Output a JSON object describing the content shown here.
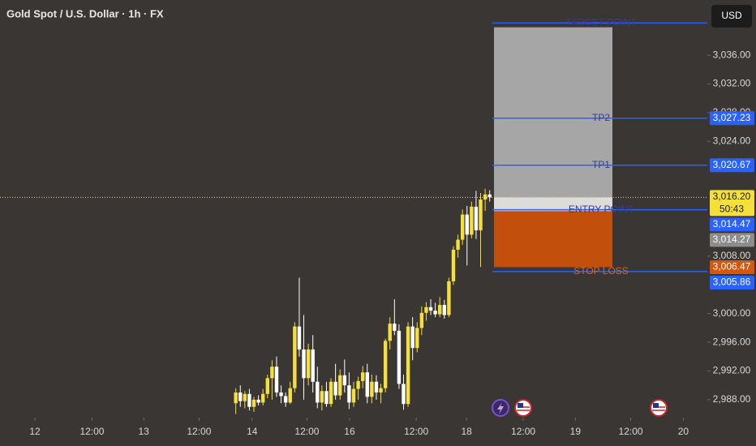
{
  "chart_data": {
    "type": "candlestick",
    "title": "Gold Spot / U.S. Dollar · 1h · FX",
    "currency": "USD",
    "x": [
      52,
      53,
      54,
      55,
      56,
      57,
      58,
      59,
      60,
      61,
      62,
      63,
      64,
      65,
      66,
      67,
      68,
      69,
      70,
      71,
      72,
      73,
      74,
      75,
      76,
      77,
      78,
      79,
      80,
      81,
      82,
      83,
      84,
      85,
      86,
      87,
      88,
      89,
      90,
      91,
      92,
      93,
      94,
      95,
      96,
      97,
      98,
      99,
      100,
      101,
      102,
      103,
      104,
      105,
      106,
      107,
      108
    ],
    "open": [
      2987.5,
      2989,
      2987.8,
      2988.8,
      2987,
      2988,
      2987.6,
      2988.8,
      2991,
      2992.6,
      2989,
      2988.5,
      2987.6,
      2989.6,
      2998.2,
      2995,
      2991,
      2995,
      2990.5,
      2987.6,
      2989.2,
      2987.4,
      2990.5,
      2988.6,
      2991.4,
      2990,
      2987.6,
      2989.5,
      2990.6,
      2991.8,
      2988.4,
      2990.5,
      2989,
      2989.6,
      2996.2,
      2998.6,
      2997.6,
      2990.2,
      2987.4,
      2998.2,
      2995.2,
      2998,
      3000.1,
      3000.9,
      3000.4,
      2999.9,
      3001.2,
      2999.8,
      3004.5,
      3008.9,
      3010.3,
      3013.8,
      3011,
      3014.9,
      3011.6,
      3015.9,
      3016.6
    ],
    "high": [
      2989.6,
      2990,
      2989.2,
      2989.5,
      2988.4,
      2988.6,
      2989.5,
      2991.5,
      2993.5,
      2994,
      2990,
      2989,
      2990.5,
      2998.8,
      3005,
      2999.8,
      2995.8,
      2997,
      2992.6,
      2990,
      2990.5,
      2991,
      2993,
      2992.2,
      2993.6,
      2991.8,
      2990.5,
      2991.2,
      2992.7,
      2993,
      2991.5,
      2991.4,
      2990.2,
      2996.5,
      2999.5,
      3002,
      2998.5,
      2991.5,
      2998.8,
      2999.5,
      2998.8,
      3001,
      3001.6,
      3002,
      3001.5,
      3002.3,
      3001.9,
      3005,
      3009.4,
      3011,
      3014.5,
      3015,
      3015.6,
      3017.1,
      3016.8,
      3017.4,
      3017.2
    ],
    "low": [
      2986,
      2987,
      2986.8,
      2986.5,
      2986.3,
      2987.2,
      2987.2,
      2988.2,
      2988,
      2988.4,
      2987.5,
      2987,
      2987.4,
      2989,
      2994,
      2988,
      2990,
      2989,
      2986.8,
      2986.5,
      2987,
      2987,
      2988,
      2988,
      2989,
      2986.7,
      2987,
      2988,
      2989.6,
      2987.5,
      2987.5,
      2988,
      2987.5,
      2989,
      2995,
      2997,
      2989.5,
      2986.6,
      2987,
      2993.5,
      2994.6,
      2997,
      2999,
      2999.8,
      2999.5,
      2999.5,
      2999.3,
      2999.5,
      3004,
      3007.8,
      3009.6,
      3006.7,
      3010.5,
      3010.4,
      3006.5,
      3014.3,
      3015.6
    ],
    "close": [
      2989,
      2987.8,
      2988.8,
      2987,
      2988,
      2987.6,
      2988.8,
      2991,
      2992.6,
      2989,
      2988.5,
      2987.6,
      2989.6,
      2998.2,
      2995,
      2991,
      2995,
      2990.5,
      2987.6,
      2989.2,
      2987.4,
      2990.5,
      2988.6,
      2991.4,
      2990,
      2987.6,
      2989.5,
      2990.6,
      2991.8,
      2988.4,
      2990.5,
      2989,
      2989.6,
      2996.2,
      2998.6,
      2997.6,
      2990.2,
      2987.4,
      2998.2,
      2995.2,
      2998,
      3000.1,
      3000.9,
      3000.4,
      2999.9,
      3001.2,
      2999.8,
      3004.5,
      3008.9,
      3010.3,
      3013.8,
      3011,
      3014.9,
      3011.6,
      3015.9,
      3016.6,
      3016.2
    ],
    "up_color": "#f5df3b",
    "down_color": "#ffffff",
    "xlim": [
      0,
      156
    ],
    "xticks": [
      {
        "value": 7.7,
        "label": "12"
      },
      {
        "value": 20.3,
        "label": "12:00"
      },
      {
        "value": 31.7,
        "label": "13"
      },
      {
        "value": 43.9,
        "label": "12:00"
      },
      {
        "value": 55.6,
        "label": "14"
      },
      {
        "value": 67.7,
        "label": "12:00"
      },
      {
        "value": 77.1,
        "label": "16"
      },
      {
        "value": 91.8,
        "label": "12:00"
      },
      {
        "value": 102.9,
        "label": "18"
      },
      {
        "value": 115.4,
        "label": "12:00"
      },
      {
        "value": 126.9,
        "label": "19"
      },
      {
        "value": 139.1,
        "label": "12:00"
      },
      {
        "value": 150.7,
        "label": "20"
      }
    ],
    "ylim": [
      2985.5,
      3043.7
    ],
    "yticks": [
      {
        "value": 2988,
        "label": "2,988.00"
      },
      {
        "value": 2992,
        "label": "2,992.00"
      },
      {
        "value": 2996,
        "label": "2,996.00"
      },
      {
        "value": 3000,
        "label": "3,000.00"
      },
      {
        "value": 3008,
        "label": "3,008.00"
      },
      {
        "value": 3024,
        "label": "3,024.00"
      },
      {
        "value": 3028,
        "label": "3,028.00"
      },
      {
        "value": 3032,
        "label": "3,032.00"
      },
      {
        "value": 3036,
        "label": "3,036.00"
      }
    ],
    "zones": [
      {
        "top": 3039.9,
        "bottom": 3016.2,
        "color": "#a6a6a6"
      },
      {
        "top": 3016.2,
        "bottom": 3014.27,
        "color": "#dcdcd8"
      },
      {
        "top": 3014.27,
        "bottom": 3006.47,
        "color": "#c24f0c"
      }
    ],
    "level_line_color": "#2962ff",
    "levels": [
      {
        "label": "TARGET POINT",
        "value": 3040.5,
        "color": "#3b3995"
      },
      {
        "label": "TP2",
        "value": 3027.23,
        "color": "#3b3995"
      },
      {
        "label": "TP1",
        "value": 3020.67,
        "color": "#3b3995"
      },
      {
        "label": "ENTRY POINT",
        "value": 3014.47,
        "color": "#3b3995"
      },
      {
        "label": "STOP LOSS",
        "value": 3005.86,
        "color": "#e0650f"
      }
    ],
    "last_price_color": "#f5df3b",
    "price_tags": [
      {
        "value": 3027.23,
        "label": "3,027.23",
        "color": "#2962ff"
      },
      {
        "value": 3020.67,
        "label": "3,020.67",
        "color": "#2962ff"
      },
      {
        "value": 3016.2,
        "label": "3,016.20",
        "sublabel": "50:43",
        "color": "#f5df3b"
      },
      {
        "value": 3014.47,
        "label": "3,014.47",
        "color": "#2962ff"
      },
      {
        "value": 3014.27,
        "label": "3,014.27",
        "color": "#8d8d8d"
      },
      {
        "value": 3006.47,
        "label": "3,006.47",
        "color": "#d5560c"
      },
      {
        "value": 3005.86,
        "label": "3,005.86",
        "color": "#2962ff"
      }
    ]
  }
}
